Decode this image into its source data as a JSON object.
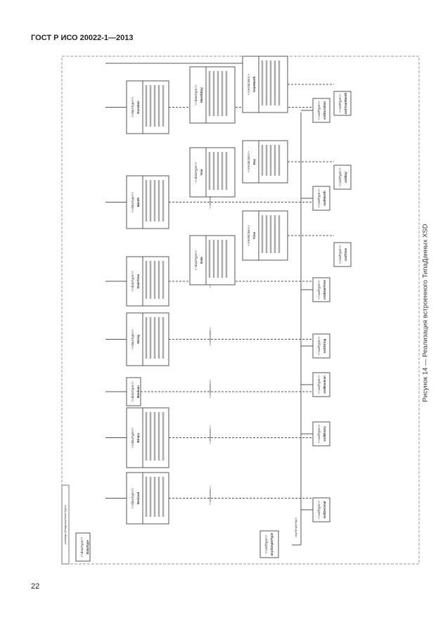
{
  "header": {
    "standard": "ГОСТ Р ИСО 20022-1—2013"
  },
  "page_number": "22",
  "caption": "Рисунок 14 — Реализация встроенного ТипаДанных XSD",
  "diagram": {
    "package_label": "package [Diagram] BasicTypes",
    "stereotype_datatype": "<<dataType>>",
    "stereotype_restriction": "<<restriction>>",
    "stereotype_xsd": "<<xsdType>>",
    "main_types": [
      "Duration",
      "Month",
      "DateTime",
      "String",
      "Boolean",
      "Binary",
      "Decimal"
    ],
    "mid_types": [
      "MonthDay",
      "Year",
      "Date"
    ],
    "inner_types": [
      "YearMonth",
      "Day",
      "Time"
    ],
    "xsd_types": [
      "xsdDuration",
      "xsdMonth",
      "xsdDateTime",
      "xsdString",
      "xsdBoolean",
      "xsdBinary",
      "xsdDecimal"
    ],
    "xsd_types_outer": [
      "xsdYearMonth",
      "xsdDay",
      "xsdTime"
    ],
    "root_type": "anySimpleType",
    "root_link": "anySimpleType",
    "left_box": "DataType"
  }
}
